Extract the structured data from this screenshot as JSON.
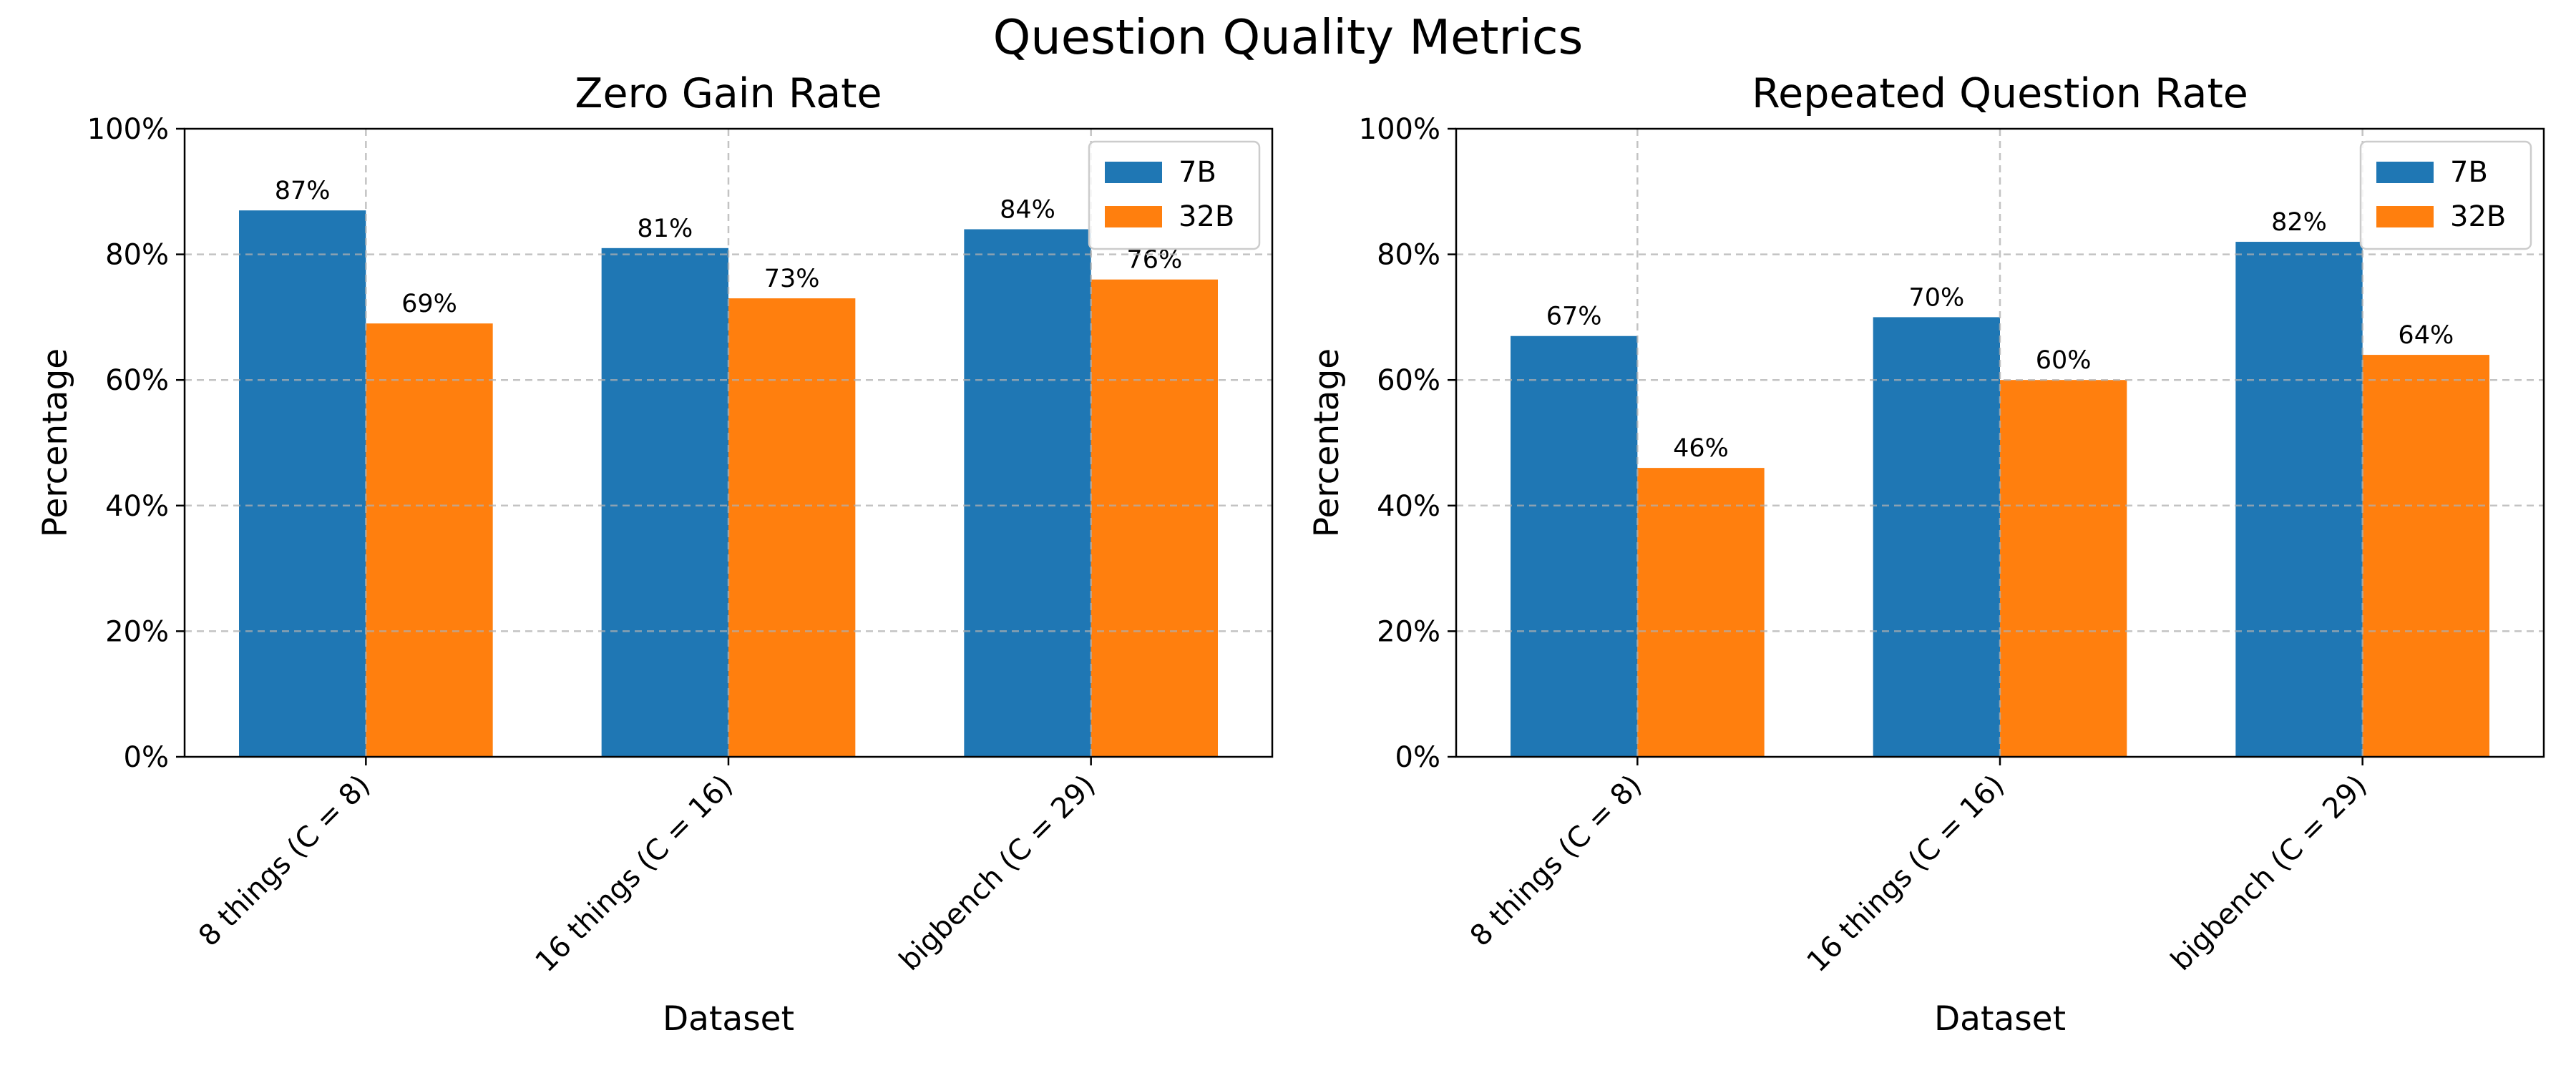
{
  "figure": {
    "title": "Question Quality Metrics"
  },
  "colors": {
    "series_7b": "#1f77b4",
    "series_32b": "#ff7f0e",
    "grid": "#b0b0b0",
    "axis": "#000000"
  },
  "chart_data": [
    {
      "type": "bar",
      "title": "Zero Gain Rate",
      "xlabel": "Dataset",
      "ylabel": "Percentage",
      "categories": [
        "8 things (C = 8)",
        "16 things (C = 16)",
        "bigbench (C = 29)"
      ],
      "series": [
        {
          "name": "7B",
          "values": [
            87,
            81,
            84
          ],
          "labels": [
            "87%",
            "81%",
            "84%"
          ]
        },
        {
          "name": "32B",
          "values": [
            69,
            73,
            76
          ],
          "labels": [
            "69%",
            "73%",
            "76%"
          ]
        }
      ],
      "ylim": [
        0,
        100
      ],
      "yticks": [
        0,
        20,
        40,
        60,
        80,
        100
      ],
      "ytick_labels": [
        "0%",
        "20%",
        "40%",
        "60%",
        "80%",
        "100%"
      ],
      "grid": true,
      "legend": "top-right"
    },
    {
      "type": "bar",
      "title": "Repeated Question Rate",
      "xlabel": "Dataset",
      "ylabel": "Percentage",
      "categories": [
        "8 things (C = 8)",
        "16 things (C = 16)",
        "bigbench (C = 29)"
      ],
      "series": [
        {
          "name": "7B",
          "values": [
            67,
            70,
            82
          ],
          "labels": [
            "67%",
            "70%",
            "82%"
          ]
        },
        {
          "name": "32B",
          "values": [
            46,
            60,
            64
          ],
          "labels": [
            "46%",
            "60%",
            "64%"
          ]
        }
      ],
      "ylim": [
        0,
        100
      ],
      "yticks": [
        0,
        20,
        40,
        60,
        80,
        100
      ],
      "ytick_labels": [
        "0%",
        "20%",
        "40%",
        "60%",
        "80%",
        "100%"
      ],
      "grid": true,
      "legend": "top-right"
    }
  ]
}
